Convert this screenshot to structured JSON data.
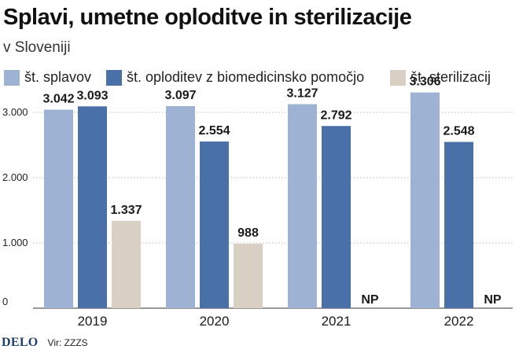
{
  "header": {
    "title": "Splavi, umetne oploditve in sterilizacije",
    "subtitle": "v Sloveniji"
  },
  "legend": [
    {
      "label": "št. splavov",
      "color": "#9eb3d3"
    },
    {
      "label": "št. oploditev z biomedicinsko pomočjo",
      "color": "#4a70a8"
    },
    {
      "label": "št. sterilizacij",
      "color": "#d9cfc3"
    }
  ],
  "footer": {
    "brand": "DELO",
    "source": "Vir: ZZZS"
  },
  "chart_data": {
    "type": "bar",
    "categories": [
      "2019",
      "2020",
      "2021",
      "2022"
    ],
    "series": [
      {
        "name": "št. splavov",
        "values": [
          3042,
          3097,
          3127,
          3306
        ],
        "labels": [
          "3.042",
          "3.097",
          "3.127",
          "3.306"
        ],
        "color": "#9eb3d3"
      },
      {
        "name": "št. oploditev z biomedicinsko pomočjo",
        "values": [
          3093,
          2554,
          2792,
          2548
        ],
        "labels": [
          "3.093",
          "2.554",
          "2.792",
          "2.548"
        ],
        "color": "#4a70a8"
      },
      {
        "name": "št. sterilizacij",
        "values": [
          1337,
          988,
          null,
          null
        ],
        "labels": [
          "1.337",
          "988",
          "NP",
          "NP"
        ],
        "color": "#d9cfc3"
      }
    ],
    "y_ticks": [
      0,
      1000,
      2000,
      3000
    ],
    "y_tick_labels": [
      "0",
      "1.000",
      "2.000",
      "3.000"
    ],
    "ylim": [
      0,
      3306
    ],
    "grid": true,
    "legend_position": "top-left"
  }
}
